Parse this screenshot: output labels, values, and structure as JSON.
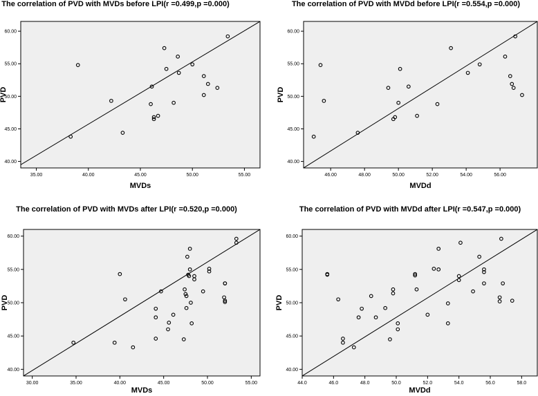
{
  "chart_data": [
    {
      "type": "scatter",
      "title": "The correlation of PVD with MVDs before LPI(r =0.499,p =0.000)",
      "xlabel": "MVDs",
      "ylabel": "PVD",
      "xlim": [
        33.5,
        56.5
      ],
      "ylim": [
        39.0,
        61.5
      ],
      "xticks": [
        "35.00",
        "40.00",
        "45.00",
        "50.00",
        "55.00"
      ],
      "yticks": [
        "40.00",
        "45.00",
        "50.00",
        "55.00",
        "60.00"
      ],
      "fit_line": {
        "x": [
          33.5,
          56.5
        ],
        "y": [
          39.5,
          61.5
        ]
      },
      "points": [
        [
          38.3,
          43.8
        ],
        [
          39.0,
          54.8
        ],
        [
          42.2,
          49.3
        ],
        [
          43.3,
          44.4
        ],
        [
          46.1,
          51.5
        ],
        [
          46.0,
          48.8
        ],
        [
          46.3,
          46.5
        ],
        [
          46.3,
          46.8
        ],
        [
          46.7,
          47.0
        ],
        [
          47.3,
          57.4
        ],
        [
          47.5,
          54.2
        ],
        [
          48.2,
          49.0
        ],
        [
          48.6,
          56.1
        ],
        [
          48.7,
          53.6
        ],
        [
          50.0,
          54.9
        ],
        [
          51.1,
          50.2
        ],
        [
          51.1,
          53.1
        ],
        [
          51.5,
          51.9
        ],
        [
          52.4,
          51.3
        ],
        [
          53.4,
          59.2
        ]
      ]
    },
    {
      "type": "scatter",
      "title": "The correlation of PVD with MVDd before LPI(r =0.554,p =0.000)",
      "xlabel": "MVDd",
      "ylabel": "PVD",
      "xlim": [
        44.4,
        58.2
      ],
      "ylim": [
        39.0,
        61.5
      ],
      "xticks": [
        "46.00",
        "48.00",
        "50.00",
        "52.00",
        "54.00",
        "56.00"
      ],
      "yticks": [
        "40.00",
        "45.00",
        "50.00",
        "55.00",
        "60.00"
      ],
      "fit_line": {
        "x": [
          44.4,
          58.2
        ],
        "y": [
          39.0,
          61.5
        ]
      },
      "points": [
        [
          45.0,
          43.8
        ],
        [
          45.4,
          54.8
        ],
        [
          45.6,
          49.3
        ],
        [
          47.6,
          44.4
        ],
        [
          49.4,
          51.3
        ],
        [
          49.7,
          46.5
        ],
        [
          49.8,
          46.8
        ],
        [
          50.0,
          49.0
        ],
        [
          50.1,
          54.2
        ],
        [
          50.6,
          51.5
        ],
        [
          51.1,
          47.0
        ],
        [
          52.3,
          48.8
        ],
        [
          53.1,
          57.4
        ],
        [
          54.1,
          53.6
        ],
        [
          54.8,
          54.9
        ],
        [
          56.3,
          56.1
        ],
        [
          56.6,
          53.1
        ],
        [
          56.7,
          51.9
        ],
        [
          56.8,
          51.3
        ],
        [
          56.9,
          59.2
        ],
        [
          57.3,
          50.2
        ]
      ]
    },
    {
      "type": "scatter",
      "title": "The correlation of PVD with MVDs after LPI(r =0.520,p =0.000)",
      "xlabel": "MVDs",
      "ylabel": "PVD",
      "xlim": [
        29.0,
        56.0
      ],
      "ylim": [
        39.0,
        61.0
      ],
      "xticks": [
        "30.00",
        "35.00",
        "40.00",
        "45.00",
        "50.00",
        "55.00"
      ],
      "yticks": [
        "40.00",
        "45.00",
        "50.00",
        "55.00",
        "60.00"
      ],
      "fit_line": {
        "x": [
          29.0,
          56.0
        ],
        "y": [
          39.0,
          61.0
        ]
      },
      "points": [
        [
          34.7,
          44.0
        ],
        [
          39.4,
          44.0
        ],
        [
          40.0,
          54.3
        ],
        [
          40.6,
          50.5
        ],
        [
          41.5,
          43.3
        ],
        [
          44.1,
          44.6
        ],
        [
          44.1,
          47.8
        ],
        [
          44.1,
          49.1
        ],
        [
          44.7,
          51.7
        ],
        [
          45.5,
          46.0
        ],
        [
          45.6,
          47.0
        ],
        [
          46.1,
          48.2
        ],
        [
          47.3,
          44.5
        ],
        [
          47.4,
          52.0
        ],
        [
          47.5,
          51.3
        ],
        [
          47.6,
          51.0
        ],
        [
          47.6,
          49.2
        ],
        [
          47.7,
          56.9
        ],
        [
          47.8,
          54.2
        ],
        [
          47.9,
          54.0
        ],
        [
          48.0,
          58.1
        ],
        [
          48.0,
          55.0
        ],
        [
          48.1,
          50.0
        ],
        [
          48.2,
          46.9
        ],
        [
          48.5,
          53.5
        ],
        [
          48.5,
          54.0
        ],
        [
          49.5,
          51.7
        ],
        [
          50.2,
          55.1
        ],
        [
          50.2,
          54.7
        ],
        [
          52.0,
          52.9
        ],
        [
          52.0,
          52.9
        ],
        [
          51.9,
          50.8
        ],
        [
          52.0,
          50.3
        ],
        [
          52.0,
          50.1
        ],
        [
          53.3,
          59.6
        ],
        [
          53.3,
          59.0
        ]
      ]
    },
    {
      "type": "scatter",
      "title": "The correlation of PVD with MVDd after LPI(r =0.547,p =0.000)",
      "xlabel": "MVDd",
      "ylabel": "PVD",
      "xlim": [
        44.0,
        59.0
      ],
      "ylim": [
        39.0,
        61.0
      ],
      "xticks": [
        "44.0",
        "46.0",
        "48.0",
        "50.0",
        "52.0",
        "54.0",
        "56.0",
        "58.0"
      ],
      "yticks": [
        "40.00",
        "45.00",
        "50.00",
        "55.00",
        "60.00"
      ],
      "fit_line": {
        "x": [
          44.0,
          59.0
        ],
        "y": [
          39.0,
          61.0
        ]
      },
      "points": [
        [
          45.6,
          54.3
        ],
        [
          45.6,
          54.2
        ],
        [
          46.3,
          50.5
        ],
        [
          46.6,
          44.6
        ],
        [
          46.6,
          44.0
        ],
        [
          47.3,
          43.3
        ],
        [
          47.6,
          47.8
        ],
        [
          47.8,
          49.1
        ],
        [
          48.4,
          51.0
        ],
        [
          48.7,
          47.8
        ],
        [
          49.3,
          49.2
        ],
        [
          49.6,
          44.5
        ],
        [
          49.8,
          52.0
        ],
        [
          49.8,
          51.4
        ],
        [
          50.1,
          46.9
        ],
        [
          50.1,
          46.0
        ],
        [
          51.2,
          54.3
        ],
        [
          51.2,
          54.1
        ],
        [
          51.3,
          52.0
        ],
        [
          52.0,
          48.2
        ],
        [
          52.4,
          55.1
        ],
        [
          52.7,
          58.1
        ],
        [
          52.7,
          55.0
        ],
        [
          53.3,
          49.9
        ],
        [
          53.3,
          46.9
        ],
        [
          54.0,
          54.0
        ],
        [
          54.0,
          53.4
        ],
        [
          54.1,
          59.0
        ],
        [
          54.9,
          51.7
        ],
        [
          55.3,
          56.9
        ],
        [
          55.6,
          55.0
        ],
        [
          55.6,
          54.6
        ],
        [
          55.6,
          52.9
        ],
        [
          56.6,
          50.8
        ],
        [
          56.6,
          50.2
        ],
        [
          56.7,
          59.6
        ],
        [
          56.8,
          52.9
        ],
        [
          57.4,
          50.3
        ]
      ]
    }
  ]
}
